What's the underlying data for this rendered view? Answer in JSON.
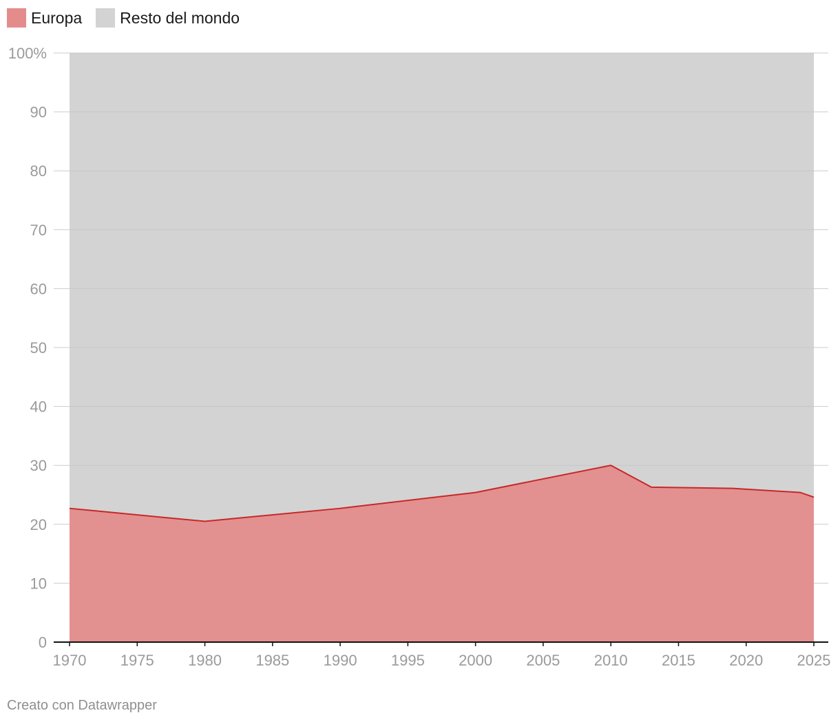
{
  "legend": [
    {
      "label": "Europa",
      "color": "#e48c8c"
    },
    {
      "label": "Resto del mondo",
      "color": "#d3d3d3"
    }
  ],
  "footer": "Creato con Datawrapper",
  "chart_data": {
    "type": "area",
    "stacked": true,
    "percent": true,
    "x": [
      1970,
      1980,
      1990,
      2000,
      2010,
      2013,
      2019,
      2024,
      2025
    ],
    "series": [
      {
        "name": "Europa",
        "color": "#e48c8c",
        "line_color": "#c62828",
        "values": [
          22.7,
          20.5,
          22.7,
          25.4,
          30.0,
          26.3,
          26.1,
          25.4,
          24.6
        ]
      },
      {
        "name": "Resto del mondo",
        "color": "#d3d3d3",
        "values": [
          77.3,
          79.5,
          77.3,
          74.6,
          70.0,
          73.7,
          73.9,
          74.6,
          75.4
        ]
      }
    ],
    "xlim": [
      1970,
      2025
    ],
    "ylim": [
      0,
      100
    ],
    "x_ticks": [
      "1970",
      "1975",
      "1980",
      "1985",
      "1990",
      "1995",
      "2000",
      "2005",
      "2010",
      "2015",
      "2020",
      "2025"
    ],
    "y_ticks": [
      "0",
      "10",
      "20",
      "30",
      "40",
      "50",
      "60",
      "70",
      "80",
      "90",
      "100%"
    ],
    "grid": true,
    "legend_position": "top-left"
  }
}
